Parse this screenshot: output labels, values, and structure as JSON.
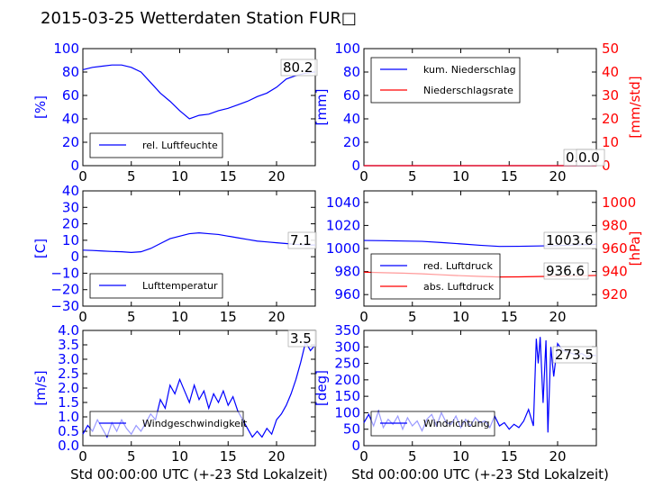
{
  "title": "2015-03-25 Wetterdaten Station FUR□",
  "x_label": "Std 00:00:00 UTC (+-23 Std Lokalzeit)",
  "colors": {
    "primary": "#0000ff",
    "secondary": "#ff0000",
    "axis": "#000000"
  },
  "x_ticks": [
    0,
    5,
    10,
    15,
    20
  ],
  "chart_data": [
    {
      "type": "line",
      "panel": "humidity",
      "ylabel": "[%]",
      "xlim": [
        0,
        24
      ],
      "ylim": [
        0,
        100
      ],
      "yticks": [
        "0",
        "20",
        "40",
        "60",
        "80",
        "100"
      ],
      "legend": [
        {
          "label": "rel. Luftfeuchte",
          "color": "#0000ff"
        }
      ],
      "legend_position": "lower-left",
      "annotation": "80.2",
      "series": [
        {
          "name": "rel. Luftfeuchte",
          "axis": "left",
          "color": "#0000ff",
          "x": [
            0,
            1,
            2,
            3,
            4,
            5,
            6,
            7,
            8,
            9,
            10,
            11,
            12,
            13,
            14,
            15,
            16,
            17,
            18,
            19,
            20,
            21,
            22,
            23,
            24
          ],
          "y": [
            82,
            84,
            85,
            86,
            86,
            84,
            80,
            71,
            62,
            55,
            47,
            40,
            43,
            44,
            47,
            49,
            52,
            55,
            59,
            62,
            67,
            74,
            77,
            79,
            80.2
          ]
        }
      ]
    },
    {
      "type": "line",
      "panel": "precipitation",
      "ylabel": "[mm]",
      "y2label": "[mm/std]",
      "xlim": [
        0,
        24
      ],
      "ylim": [
        0,
        100
      ],
      "y2lim": [
        0,
        50
      ],
      "yticks": [
        "0",
        "20",
        "40",
        "60",
        "80",
        "100"
      ],
      "y2ticks": [
        "0",
        "10",
        "20",
        "30",
        "40",
        "50"
      ],
      "legend": [
        {
          "label": "kum. Niederschlag",
          "color": "#0000ff"
        },
        {
          "label": "Niederschlagsrate",
          "color": "#ff0000"
        }
      ],
      "legend_position": "upper-left",
      "annotations": [
        "0.0",
        "0.0"
      ],
      "series": [
        {
          "name": "kum. Niederschlag",
          "axis": "left",
          "color": "#0000ff",
          "x": [
            0,
            24
          ],
          "y": [
            0,
            0
          ]
        },
        {
          "name": "Niederschlagsrate",
          "axis": "right",
          "color": "#ff0000",
          "x": [
            0,
            24
          ],
          "y": [
            0,
            0
          ]
        }
      ]
    },
    {
      "type": "line",
      "panel": "temperature",
      "ylabel": "[C]",
      "xlim": [
        0,
        24
      ],
      "ylim": [
        -30,
        40
      ],
      "yticks": [
        "−30",
        "−20",
        "−10",
        "0",
        "10",
        "20",
        "30",
        "40"
      ],
      "legend": [
        {
          "label": "Lufttemperatur",
          "color": "#0000ff"
        }
      ],
      "legend_position": "lower-left",
      "annotation": "7.1",
      "series": [
        {
          "name": "Lufttemperatur",
          "axis": "left",
          "color": "#0000ff",
          "x": [
            0,
            1,
            2,
            3,
            4,
            5,
            6,
            7,
            8,
            9,
            10,
            11,
            12,
            13,
            14,
            15,
            16,
            17,
            18,
            19,
            20,
            21,
            22,
            23,
            24
          ],
          "y": [
            4,
            3.8,
            3.5,
            3.2,
            3,
            2.6,
            3,
            5,
            8,
            11,
            12.5,
            14,
            14.5,
            14,
            13.5,
            12.5,
            11.5,
            10.5,
            9.5,
            9,
            8.5,
            8,
            7.5,
            7.2,
            7.1
          ]
        }
      ]
    },
    {
      "type": "line",
      "panel": "pressure",
      "ylabel": "",
      "y2label": "[hPa]",
      "xlim": [
        0,
        24
      ],
      "ylim": [
        950,
        1050
      ],
      "y2lim": [
        910,
        1010
      ],
      "yticks": [
        "960",
        "980",
        "1000",
        "1020",
        "1040"
      ],
      "y2ticks": [
        "920",
        "940",
        "960",
        "980",
        "1000"
      ],
      "legend": [
        {
          "label": "red. Luftdruck",
          "color": "#0000ff"
        },
        {
          "label": "abs. Luftdruck",
          "color": "#ff0000"
        }
      ],
      "legend_position": "lower-left",
      "annotations": [
        "1003.6",
        "936.6"
      ],
      "series": [
        {
          "name": "red. Luftdruck",
          "axis": "left",
          "color": "#0000ff",
          "x": [
            0,
            2,
            4,
            6,
            8,
            10,
            12,
            14,
            16,
            18,
            20,
            22,
            24
          ],
          "y": [
            1007,
            1006.8,
            1006.5,
            1006.2,
            1005.2,
            1004,
            1002.8,
            1001.8,
            1001.9,
            1002.2,
            1002.5,
            1003.1,
            1003.6
          ]
        },
        {
          "name": "abs. Luftdruck",
          "axis": "right",
          "color": "#ff0000",
          "x": [
            0,
            2,
            4,
            6,
            8,
            10,
            12,
            14,
            16,
            18,
            20,
            22,
            24
          ],
          "y": [
            939.5,
            939,
            938.6,
            938,
            937.2,
            936.4,
            935.8,
            935.3,
            935.4,
            935.7,
            936,
            936.3,
            936.6
          ]
        }
      ]
    },
    {
      "type": "line",
      "panel": "windspeed",
      "ylabel": "[m/s]",
      "xlim": [
        0,
        24
      ],
      "ylim": [
        0,
        4
      ],
      "yticks": [
        "0.0",
        "0.5",
        "1.0",
        "1.5",
        "2.0",
        "2.5",
        "3.0",
        "3.5",
        "4.0"
      ],
      "legend": [
        {
          "label": "Windgeschwindigkeit",
          "color": "#0000ff"
        }
      ],
      "legend_position": "lower-left",
      "annotation": "3.5",
      "series": [
        {
          "name": "Windgeschwindigkeit",
          "axis": "left",
          "color": "#0000ff",
          "x": [
            0,
            0.5,
            1,
            1.5,
            2,
            2.5,
            3,
            3.5,
            4,
            4.5,
            5,
            5.5,
            6,
            6.5,
            7,
            7.5,
            8,
            8.5,
            9,
            9.5,
            10,
            10.5,
            11,
            11.5,
            12,
            12.5,
            13,
            13.5,
            14,
            14.5,
            15,
            15.5,
            16,
            16.5,
            17,
            17.5,
            18,
            18.5,
            19,
            19.5,
            20,
            20.5,
            21,
            21.5,
            22,
            22.5,
            23,
            23.5,
            24
          ],
          "y": [
            0.4,
            0.7,
            0.5,
            0.9,
            0.6,
            0.3,
            0.8,
            0.5,
            0.9,
            0.6,
            0.4,
            0.7,
            0.5,
            0.8,
            1.1,
            0.9,
            1.6,
            1.3,
            2.1,
            1.8,
            2.3,
            1.9,
            1.5,
            2.1,
            1.6,
            1.9,
            1.3,
            1.8,
            1.5,
            1.9,
            1.4,
            1.7,
            1.2,
            0.9,
            0.6,
            0.3,
            0.5,
            0.3,
            0.6,
            0.4,
            0.9,
            1.1,
            1.4,
            1.8,
            2.3,
            2.9,
            3.6,
            3.3,
            3.5
          ]
        }
      ]
    },
    {
      "type": "line",
      "panel": "winddirection",
      "ylabel": "[deg]",
      "xlim": [
        0,
        24
      ],
      "ylim": [
        0,
        350
      ],
      "yticks": [
        "0",
        "50",
        "100",
        "150",
        "200",
        "250",
        "300",
        "350"
      ],
      "legend": [
        {
          "label": "Windrichtung",
          "color": "#0000ff"
        }
      ],
      "legend_position": "lower-left",
      "annotation": "273.5",
      "series": [
        {
          "name": "Windrichtung",
          "axis": "left",
          "color": "#0000ff",
          "x": [
            0,
            0.5,
            1,
            1.5,
            2,
            2.5,
            3,
            3.5,
            4,
            4.5,
            5,
            5.5,
            6,
            6.5,
            7,
            7.5,
            8,
            8.5,
            9,
            9.5,
            10,
            10.5,
            11,
            11.5,
            12,
            12.5,
            13,
            13.5,
            14,
            14.5,
            15,
            15.5,
            16,
            16.5,
            17,
            17.5,
            17.8,
            18,
            18.2,
            18.5,
            18.8,
            19,
            19.3,
            19.6,
            20,
            20.5,
            21,
            21.5,
            22,
            22.5,
            23,
            23.5,
            24
          ],
          "y": [
            70,
            95,
            60,
            105,
            55,
            80,
            65,
            90,
            50,
            85,
            60,
            75,
            45,
            80,
            95,
            60,
            100,
            70,
            65,
            90,
            55,
            80,
            60,
            85,
            70,
            75,
            55,
            90,
            60,
            70,
            50,
            65,
            55,
            75,
            110,
            60,
            325,
            250,
            330,
            130,
            320,
            40,
            300,
            210,
            310,
            290,
            285,
            280,
            275,
            280,
            270,
            275,
            273.5
          ]
        }
      ]
    }
  ]
}
